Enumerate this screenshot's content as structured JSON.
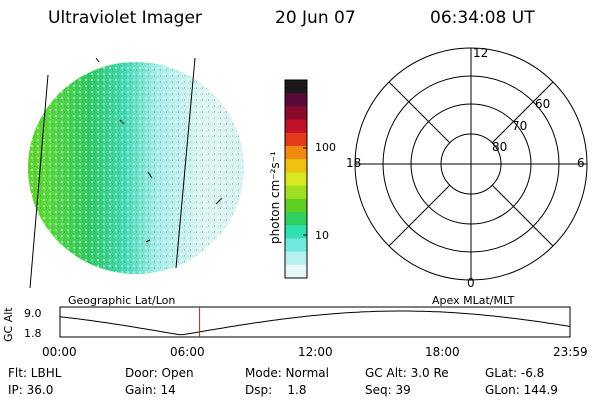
{
  "header": {
    "instrument": "Ultraviolet Imager",
    "date": "20 Jun 07",
    "time": "06:34:08 UT"
  },
  "colorbar": {
    "unit_label": "photon cm⁻²s⁻¹",
    "ticks": [
      "100",
      "10"
    ],
    "colors": [
      "#1a1a1a",
      "#5a0a3a",
      "#8a0a2a",
      "#c0102a",
      "#e23a1a",
      "#f08a10",
      "#f0c010",
      "#d8e820",
      "#a0e020",
      "#60d020",
      "#30d060",
      "#30e0b0",
      "#70e8e0",
      "#b8f0f0",
      "#e8f8f8"
    ]
  },
  "polar_plot": {
    "top_label": "12",
    "bottom_label": "0",
    "left_label": "18",
    "right_label": "6",
    "ring_labels": [
      "60",
      "70",
      "80"
    ]
  },
  "altitude_strip": {
    "left_title": "Geographic Lat/Lon",
    "right_title": "Apex MLat/MLT",
    "y_axis_label": "GC Alt",
    "y_ticks": [
      "9.0",
      "1.8"
    ],
    "x_ticks": [
      "00:00",
      "06:00",
      "12:00",
      "18:00",
      "23:59"
    ],
    "marker_color": "#c02020",
    "current_time_hours": 6.57
  },
  "status": {
    "row1": [
      {
        "name": "flt",
        "text": "Flt: LBHL"
      },
      {
        "name": "door",
        "text": "Door: Open"
      },
      {
        "name": "mode",
        "text": "Mode: Normal"
      },
      {
        "name": "gc-alt",
        "text": "GC Alt: 3.0 Re"
      },
      {
        "name": "glat",
        "text": "GLat:  -6.8"
      }
    ],
    "row2": [
      {
        "name": "ip",
        "text": "IP: 36.0"
      },
      {
        "name": "gain",
        "text": "Gain: 14"
      },
      {
        "name": "dsp",
        "text": "Dsp:    1.8"
      },
      {
        "name": "seq",
        "text": "Seq: 39"
      },
      {
        "name": "glon",
        "text": "GLon: 144.9"
      }
    ]
  }
}
